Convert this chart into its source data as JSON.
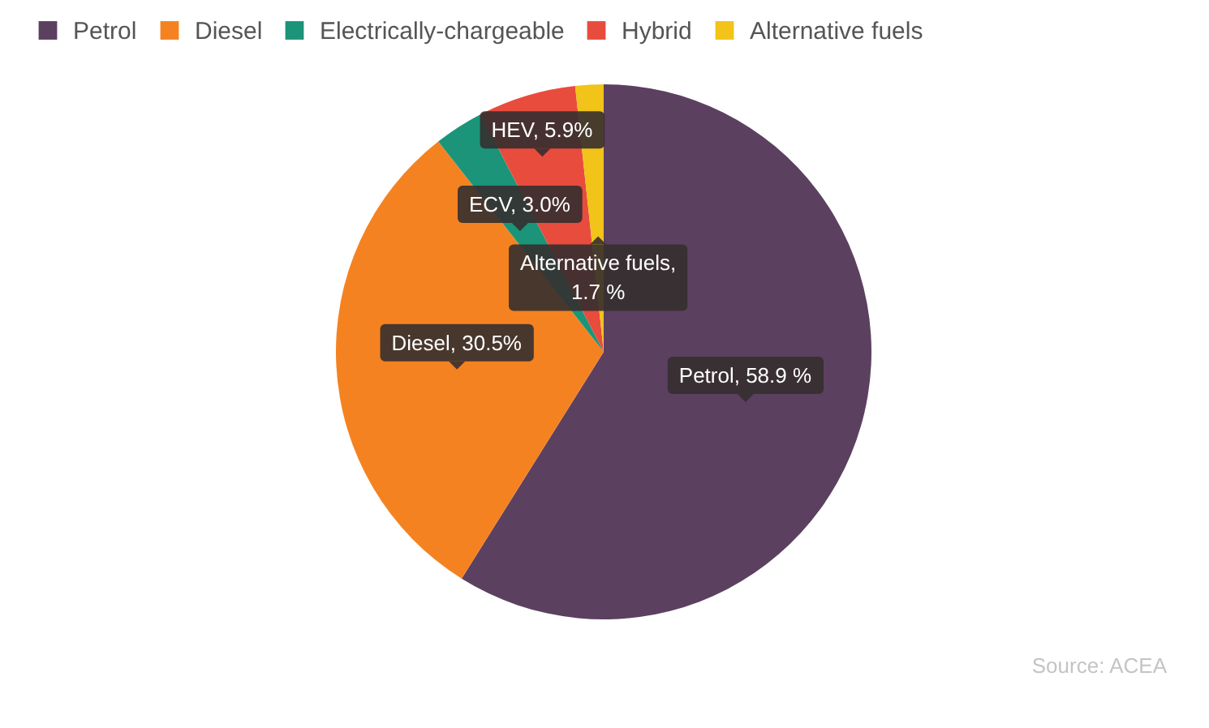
{
  "chart_data": {
    "type": "pie",
    "categories": [
      "Petrol",
      "Diesel",
      "Electrically-chargeable",
      "Hybrid",
      "Alternative fuels"
    ],
    "values": [
      58.9,
      30.5,
      3.0,
      5.9,
      1.7
    ],
    "colors": [
      "#5c4060",
      "#f58220",
      "#1b9479",
      "#e84c3d",
      "#f2c318"
    ],
    "value_labels": [
      "Petrol, 58.9 %",
      "Diesel, 30.5%",
      "ECV, 3.0%",
      "HEV, 5.9%",
      "Alternative fuels, 1.7 %"
    ],
    "legend": "top left",
    "annotations": [
      "Source: ACEA"
    ]
  }
}
